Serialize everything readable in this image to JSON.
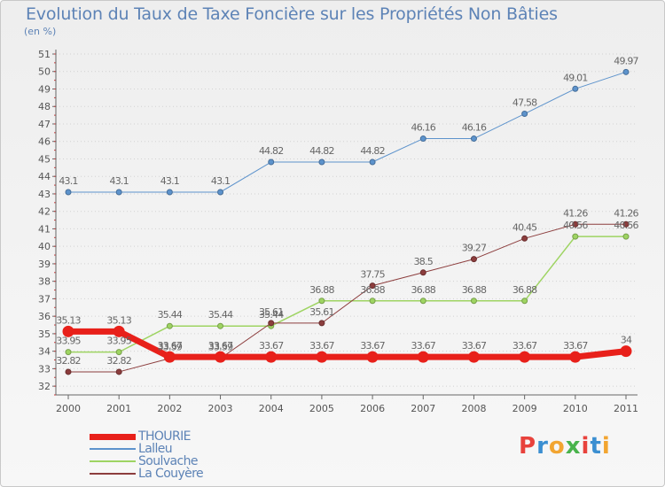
{
  "title": "Evolution du Taux de Taxe Foncière sur les Propriétés Non Bâties",
  "unit": "(en %)",
  "colors": {
    "title": "#5d83b6",
    "axis": "#666666",
    "grid": "#d2d2d2",
    "background_top": "#eeeeee",
    "background_bottom": "#f7f7f7"
  },
  "logo": {
    "letters": [
      "P",
      "r",
      "o",
      "x",
      "i",
      "t",
      "i"
    ],
    "colors": [
      "#e8423c",
      "#3b8fd1",
      "#f2a531",
      "#49b34c",
      "#e8423c",
      "#3b8fd1",
      "#f2a531"
    ]
  },
  "chart_data": {
    "type": "line",
    "x": [
      "2000",
      "2001",
      "2002",
      "2003",
      "2004",
      "2005",
      "2006",
      "2007",
      "2008",
      "2009",
      "2010",
      "2011"
    ],
    "y_ticks": [
      "32",
      "33",
      "34",
      "35",
      "36",
      "37",
      "38",
      "39",
      "40",
      "41",
      "42",
      "43",
      "44",
      "45",
      "46",
      "47",
      "48",
      "49",
      "50",
      "51"
    ],
    "ylim": [
      31.5,
      51
    ],
    "grid": "horizontal dotted",
    "legend_position": "bottom-left",
    "series": [
      {
        "name": "Lalleu",
        "color": "#5d93cc",
        "line_width": 1,
        "marker_radius": 3,
        "values": [
          43.1,
          43.1,
          43.1,
          43.1,
          44.82,
          44.82,
          44.82,
          46.16,
          46.16,
          47.58,
          49.01,
          49.97
        ],
        "labels": [
          "43.1",
          "43.1",
          "43.1",
          "43.1",
          "44.82",
          "44.82",
          "44.82",
          "46.16",
          "46.16",
          "47.58",
          "49.01",
          "49.97"
        ]
      },
      {
        "name": "Soulvache",
        "color": "#9ed462",
        "line_width": 1.5,
        "marker_radius": 3,
        "values": [
          33.95,
          33.95,
          35.44,
          35.44,
          35.44,
          36.88,
          36.88,
          36.88,
          36.88,
          36.88,
          40.56,
          40.56
        ],
        "labels": [
          "33.95",
          "33.95",
          "35.44",
          "35.44",
          "35.44",
          "36.88",
          "36.88",
          "36.88",
          "36.88",
          "36.88",
          "40.56",
          "40.56"
        ]
      },
      {
        "name": "La Couyère",
        "color": "#8c3d3d",
        "line_width": 1,
        "marker_radius": 3,
        "values": [
          32.82,
          32.82,
          33.59,
          33.59,
          35.61,
          35.61,
          37.75,
          38.5,
          39.27,
          40.45,
          41.26,
          41.26
        ],
        "labels": [
          "32.82",
          "32.82",
          "33.59",
          "33.59",
          "35.61",
          "35.61",
          "37.75",
          "38.5",
          "39.27",
          "40.45",
          "41.26",
          "41.26"
        ]
      },
      {
        "name": "THOURIE",
        "color": "#e8201a",
        "line_width": 7,
        "marker_radius": 6,
        "values": [
          35.13,
          35.13,
          33.67,
          33.67,
          33.67,
          33.67,
          33.67,
          33.67,
          33.67,
          33.67,
          33.67,
          34
        ],
        "labels": [
          "35.13",
          "35.13",
          "33.67",
          "33.67",
          "33.67",
          "33.67",
          "33.67",
          "33.67",
          "33.67",
          "33.67",
          "33.67",
          "34"
        ]
      }
    ],
    "legend": [
      {
        "name": "THOURIE",
        "color": "#e8201a",
        "thickness": 7
      },
      {
        "name": "Lalleu",
        "color": "#5d93cc",
        "thickness": 2
      },
      {
        "name": "Soulvache",
        "color": "#9ed462",
        "thickness": 2
      },
      {
        "name": "La Couyère",
        "color": "#8c3d3d",
        "thickness": 2
      }
    ]
  }
}
